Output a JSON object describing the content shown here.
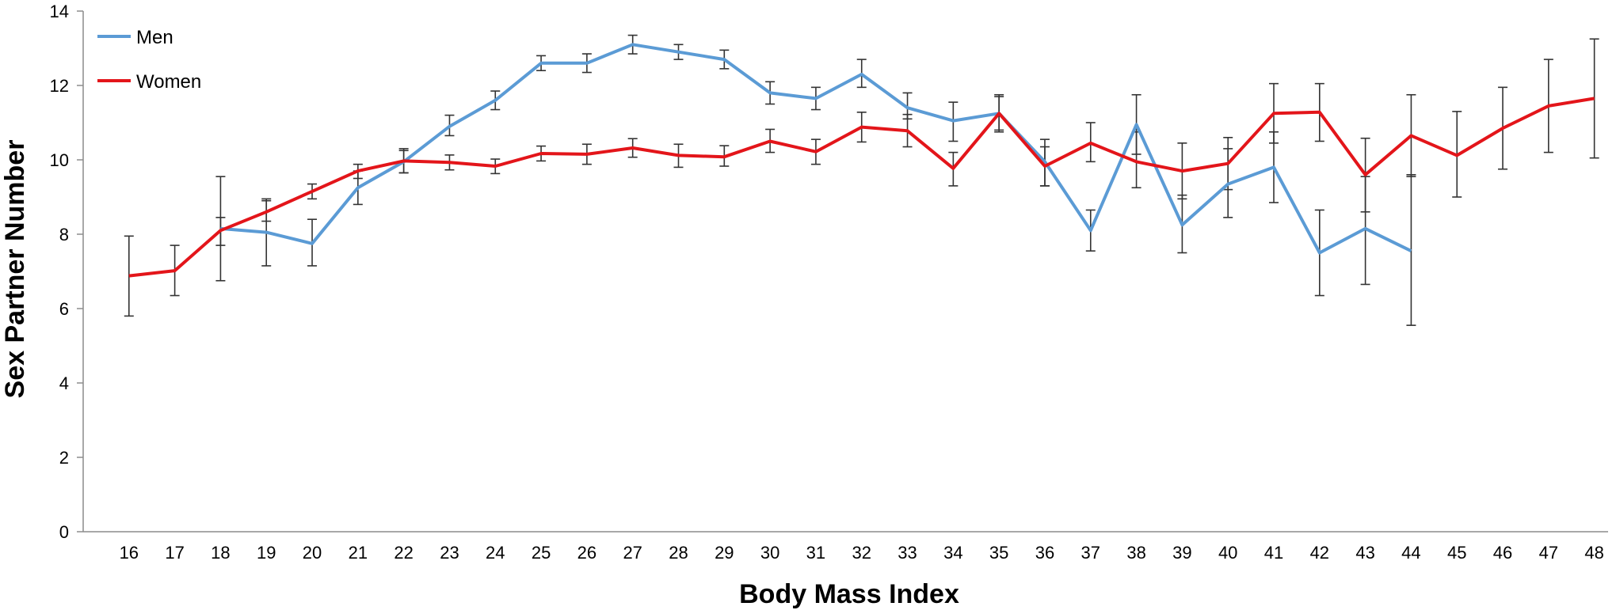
{
  "chart_data": {
    "type": "line",
    "title": "",
    "xlabel": "Body Mass Index",
    "ylabel": "Sex Partner Number",
    "ylim": [
      0,
      14
    ],
    "yticks": [
      0,
      2,
      4,
      6,
      8,
      10,
      12,
      14
    ],
    "grid": false,
    "legend": "top-left",
    "categories": [
      "16",
      "17",
      "18",
      "19",
      "20",
      "21",
      "22",
      "23",
      "24",
      "25",
      "26",
      "27",
      "28",
      "29",
      "30",
      "31",
      "32",
      "33",
      "34",
      "35",
      "36",
      "37",
      "38",
      "39",
      "40",
      "41",
      "42",
      "43",
      "44",
      "45",
      "46",
      "47",
      "48"
    ],
    "series": [
      {
        "name": "Men",
        "color": "#5B9BD5",
        "values": [
          null,
          null,
          8.15,
          8.05,
          7.75,
          9.25,
          9.95,
          10.9,
          11.6,
          12.6,
          12.6,
          13.1,
          12.9,
          12.7,
          11.8,
          11.65,
          12.3,
          11.4,
          11.05,
          11.25,
          9.95,
          8.1,
          10.95,
          8.25,
          9.35,
          9.8,
          7.5,
          8.15,
          7.55,
          null,
          null,
          null,
          null
        ],
        "err_low": [
          null,
          null,
          7.7,
          7.15,
          7.15,
          8.8,
          9.65,
          10.65,
          11.35,
          12.4,
          12.35,
          12.85,
          12.7,
          12.45,
          11.5,
          11.35,
          11.95,
          11.1,
          10.5,
          10.75,
          9.3,
          7.55,
          10.15,
          7.5,
          8.45,
          8.85,
          6.35,
          6.65,
          5.55,
          null,
          null,
          null,
          null
        ],
        "err_high": [
          null,
          null,
          8.45,
          8.9,
          8.4,
          9.7,
          10.25,
          11.2,
          11.85,
          12.8,
          12.85,
          13.35,
          13.1,
          12.95,
          12.1,
          11.95,
          12.7,
          11.8,
          11.55,
          11.75,
          10.55,
          8.65,
          11.75,
          9.05,
          10.3,
          10.75,
          8.65,
          9.55,
          9.6,
          null,
          null,
          null,
          null
        ]
      },
      {
        "name": "Women",
        "color": "#E3151A",
        "values": [
          6.88,
          7.02,
          8.1,
          8.6,
          9.15,
          9.7,
          9.97,
          9.93,
          9.83,
          10.17,
          10.15,
          10.32,
          10.12,
          10.08,
          10.5,
          10.22,
          10.88,
          10.78,
          9.77,
          11.25,
          9.83,
          10.45,
          9.95,
          9.7,
          9.9,
          11.25,
          11.28,
          9.6,
          10.65,
          10.12,
          10.85,
          11.45,
          11.65
        ],
        "err_low": [
          5.8,
          6.35,
          6.75,
          8.35,
          8.95,
          9.5,
          9.65,
          9.73,
          9.63,
          9.97,
          9.88,
          10.07,
          9.8,
          9.83,
          10.2,
          9.88,
          10.48,
          10.35,
          9.3,
          10.8,
          9.3,
          9.95,
          9.25,
          8.95,
          9.2,
          10.45,
          10.5,
          8.6,
          9.55,
          9.0,
          9.75,
          10.2,
          10.05
        ],
        "err_high": [
          7.95,
          7.7,
          9.55,
          8.95,
          9.35,
          9.88,
          10.3,
          10.13,
          10.02,
          10.37,
          10.42,
          10.57,
          10.42,
          10.38,
          10.82,
          10.55,
          11.28,
          11.22,
          10.2,
          11.7,
          10.35,
          11.0,
          10.75,
          10.45,
          10.6,
          12.05,
          12.05,
          10.58,
          11.75,
          11.3,
          11.95,
          12.7,
          13.25
        ]
      }
    ]
  }
}
